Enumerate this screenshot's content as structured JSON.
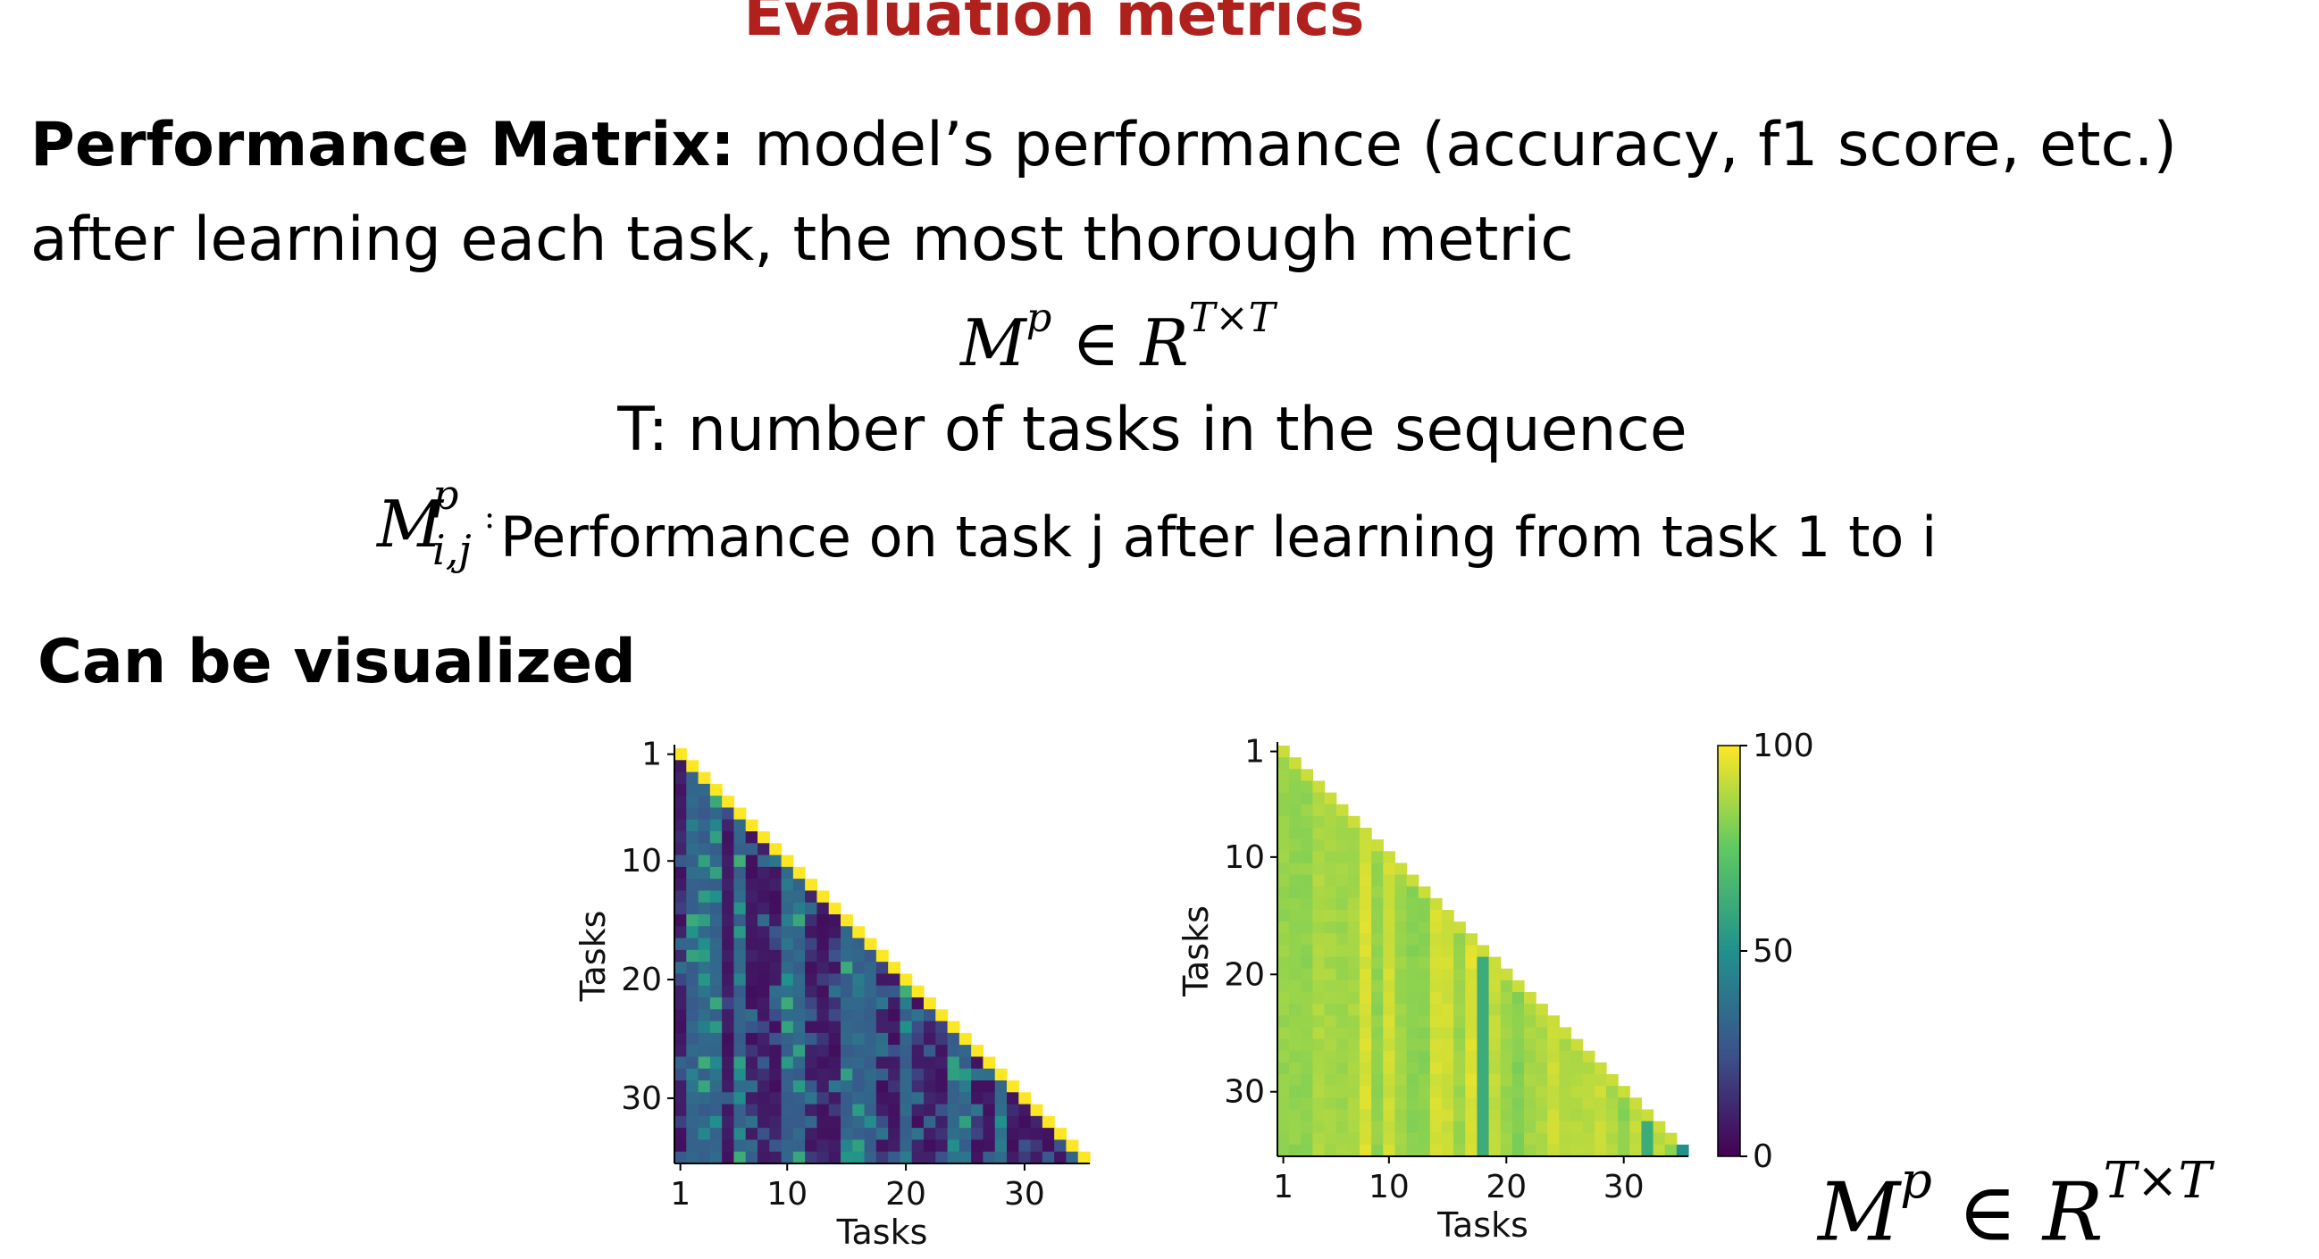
{
  "slide": {
    "title": "Evaluation metrics",
    "heading_bold": "Performance Matrix:",
    "heading_text": " model’s performance (accuracy, f1 score, etc.) after learning each task, the most thorough metric",
    "formula_M": "M",
    "formula_p": "p",
    "formula_in": " ∈ ",
    "formula_R": "R",
    "formula_TT": "T×T",
    "t_definition": "T: number of tasks in the sequence",
    "mij_sup": "p",
    "mij_sub": "i,j",
    "mij_colon": ":",
    "mij_definition": "Performance on task j after learning from task 1 to i",
    "visualized_label": "Can be visualized"
  },
  "chart_data": [
    {
      "type": "heatmap",
      "title": "",
      "xlabel": "Tasks",
      "ylabel": "Tasks",
      "x_ticks": [
        "1",
        "10",
        "20",
        "30"
      ],
      "y_ticks": [
        "1",
        "10",
        "20",
        "30"
      ],
      "n_tasks": 35,
      "value_range": [
        0,
        100
      ],
      "colormap": "viridis",
      "shape": "lower-triangular",
      "diagonal_level": 100,
      "off_diagonal_level": "low (mostly 0–50, dark purple to teal)"
    },
    {
      "type": "heatmap",
      "title": "",
      "xlabel": "Tasks",
      "ylabel": "Tasks",
      "x_ticks": [
        "1",
        "10",
        "20",
        "30"
      ],
      "y_ticks": [
        "1",
        "10",
        "20",
        "30"
      ],
      "n_tasks": 35,
      "value_range": [
        0,
        100
      ],
      "colormap": "viridis",
      "shape": "lower-triangular",
      "off_diagonal_level": "high (mostly 80–95, yellow-green)",
      "colorbar_ticks": [
        "0",
        "50",
        "100"
      ]
    }
  ]
}
